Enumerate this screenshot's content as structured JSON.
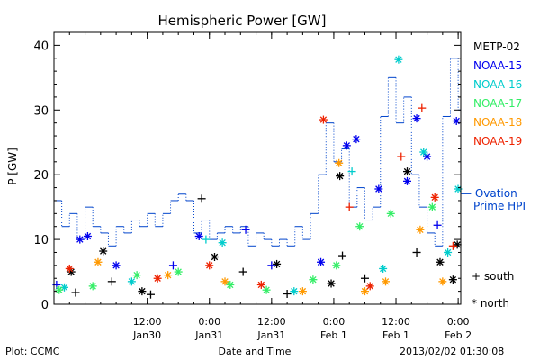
{
  "chart_data": {
    "type": "scatter",
    "title": "Hemispheric Power [GW]",
    "ylabel": "P [GW]",
    "xlabel": "Date and Time",
    "ylim": [
      0,
      42
    ],
    "yticks": [
      0,
      10,
      20,
      30,
      40
    ],
    "xlim": [
      "2013-01-29T18:00",
      "2013-02-02T00:30"
    ],
    "xticks": [
      {
        "t": "2013-01-30T12:00",
        "line1": "12:00",
        "line2": "Jan30"
      },
      {
        "t": "2013-01-31T00:00",
        "line1": "0:00",
        "line2": "Jan31"
      },
      {
        "t": "2013-01-31T12:00",
        "line1": "12:00",
        "line2": "Jan31"
      },
      {
        "t": "2013-02-01T00:00",
        "line1": "0:00",
        "line2": "Feb 1"
      },
      {
        "t": "2013-02-01T12:00",
        "line1": "12:00",
        "line2": "Feb 1"
      },
      {
        "t": "2013-02-02T00:00",
        "line1": "0:00",
        "line2": "Feb 2"
      }
    ],
    "series": [
      {
        "name": "METP-02",
        "color": "#000000",
        "points": [
          {
            "t": "2013-01-29T21:20",
            "v": 5.0,
            "m": "*"
          },
          {
            "t": "2013-01-29T22:10",
            "v": 1.8,
            "m": "+"
          },
          {
            "t": "2013-01-30T03:30",
            "v": 8.2,
            "m": "*"
          },
          {
            "t": "2013-01-30T05:10",
            "v": 3.5,
            "m": "+"
          },
          {
            "t": "2013-01-30T11:00",
            "v": 2.0,
            "m": "*"
          },
          {
            "t": "2013-01-30T12:40",
            "v": 1.5,
            "m": "+"
          },
          {
            "t": "2013-01-30T22:30",
            "v": 16.3,
            "m": "+"
          },
          {
            "t": "2013-01-31T01:00",
            "v": 7.3,
            "m": "*"
          },
          {
            "t": "2013-01-31T06:30",
            "v": 5.0,
            "m": "+"
          },
          {
            "t": "2013-01-31T13:00",
            "v": 6.2,
            "m": "*"
          },
          {
            "t": "2013-01-31T15:00",
            "v": 1.6,
            "m": "+"
          },
          {
            "t": "2013-01-31T23:30",
            "v": 3.2,
            "m": "*"
          },
          {
            "t": "2013-02-01T01:10",
            "v": 19.8,
            "m": "*"
          },
          {
            "t": "2013-02-01T01:40",
            "v": 7.5,
            "m": "+"
          },
          {
            "t": "2013-02-01T06:00",
            "v": 4.0,
            "m": "+"
          },
          {
            "t": "2013-02-01T14:10",
            "v": 20.5,
            "m": "*"
          },
          {
            "t": "2013-02-01T16:00",
            "v": 8.0,
            "m": "+"
          },
          {
            "t": "2013-02-01T20:30",
            "v": 6.5,
            "m": "*"
          },
          {
            "t": "2013-02-01T23:00",
            "v": 3.8,
            "m": "*"
          },
          {
            "t": "2013-02-01T23:50",
            "v": 9.2,
            "m": "*"
          }
        ]
      },
      {
        "name": "NOAA-15",
        "color": "#0000ee",
        "points": [
          {
            "t": "2013-01-29T18:30",
            "v": 3.0,
            "m": "+"
          },
          {
            "t": "2013-01-29T23:00",
            "v": 10.0,
            "m": "*"
          },
          {
            "t": "2013-01-30T00:30",
            "v": 10.5,
            "m": "*"
          },
          {
            "t": "2013-01-30T06:00",
            "v": 6.0,
            "m": "*"
          },
          {
            "t": "2013-01-30T17:00",
            "v": 6.0,
            "m": "+"
          },
          {
            "t": "2013-01-30T22:00",
            "v": 10.5,
            "m": "*"
          },
          {
            "t": "2013-01-31T07:00",
            "v": 11.5,
            "m": "+"
          },
          {
            "t": "2013-01-31T12:00",
            "v": 6.0,
            "m": "+"
          },
          {
            "t": "2013-01-31T21:30",
            "v": 6.5,
            "m": "*"
          },
          {
            "t": "2013-02-01T02:30",
            "v": 24.5,
            "m": "*"
          },
          {
            "t": "2013-02-01T04:20",
            "v": 25.5,
            "m": "*"
          },
          {
            "t": "2013-02-01T08:40",
            "v": 17.8,
            "m": "*"
          },
          {
            "t": "2013-02-01T14:10",
            "v": 19.0,
            "m": "*"
          },
          {
            "t": "2013-02-01T16:00",
            "v": 28.7,
            "m": "*"
          },
          {
            "t": "2013-02-01T18:00",
            "v": 22.8,
            "m": "*"
          },
          {
            "t": "2013-02-01T20:00",
            "v": 12.2,
            "m": "+"
          },
          {
            "t": "2013-02-01T23:40",
            "v": 28.3,
            "m": "*"
          }
        ]
      },
      {
        "name": "NOAA-16",
        "color": "#00cccc",
        "points": [
          {
            "t": "2013-01-29T20:00",
            "v": 2.6,
            "m": "*"
          },
          {
            "t": "2013-01-30T09:00",
            "v": 3.5,
            "m": "*"
          },
          {
            "t": "2013-01-30T23:20",
            "v": 10.0,
            "m": "+"
          },
          {
            "t": "2013-01-31T02:30",
            "v": 9.5,
            "m": "*"
          },
          {
            "t": "2013-01-31T16:20",
            "v": 2.0,
            "m": "*"
          },
          {
            "t": "2013-02-01T03:30",
            "v": 20.5,
            "m": "+"
          },
          {
            "t": "2013-02-01T09:30",
            "v": 5.5,
            "m": "*"
          },
          {
            "t": "2013-02-01T12:30",
            "v": 37.8,
            "m": "*"
          },
          {
            "t": "2013-02-01T17:20",
            "v": 23.5,
            "m": "*"
          },
          {
            "t": "2013-02-01T22:00",
            "v": 8.0,
            "m": "*"
          },
          {
            "t": "2013-02-01T23:59",
            "v": 17.8,
            "m": "*"
          }
        ]
      },
      {
        "name": "NOAA-17",
        "color": "#33ee66",
        "points": [
          {
            "t": "2013-01-29T19:00",
            "v": 2.2,
            "m": "*"
          },
          {
            "t": "2013-01-30T01:30",
            "v": 2.8,
            "m": "*"
          },
          {
            "t": "2013-01-30T10:00",
            "v": 4.5,
            "m": "*"
          },
          {
            "t": "2013-01-30T18:00",
            "v": 5.0,
            "m": "*"
          },
          {
            "t": "2013-01-31T04:00",
            "v": 3.0,
            "m": "*"
          },
          {
            "t": "2013-01-31T11:00",
            "v": 2.2,
            "m": "*"
          },
          {
            "t": "2013-01-31T20:00",
            "v": 3.8,
            "m": "*"
          },
          {
            "t": "2013-02-01T00:30",
            "v": 6.0,
            "m": "*"
          },
          {
            "t": "2013-02-01T05:00",
            "v": 12.0,
            "m": "*"
          },
          {
            "t": "2013-02-01T11:00",
            "v": 14.0,
            "m": "*"
          },
          {
            "t": "2013-02-01T19:00",
            "v": 15.0,
            "m": "*"
          }
        ]
      },
      {
        "name": "NOAA-18",
        "color": "#ff9900",
        "points": [
          {
            "t": "2013-01-30T02:30",
            "v": 6.5,
            "m": "*"
          },
          {
            "t": "2013-01-30T16:00",
            "v": 4.5,
            "m": "*"
          },
          {
            "t": "2013-01-31T03:00",
            "v": 3.5,
            "m": "*"
          },
          {
            "t": "2013-01-31T18:00",
            "v": 2.0,
            "m": "*"
          },
          {
            "t": "2013-02-01T01:00",
            "v": 21.8,
            "m": "*"
          },
          {
            "t": "2013-02-01T06:00",
            "v": 2.0,
            "m": "*"
          },
          {
            "t": "2013-02-01T10:00",
            "v": 3.5,
            "m": "*"
          },
          {
            "t": "2013-02-01T16:40",
            "v": 11.5,
            "m": "*"
          },
          {
            "t": "2013-02-01T21:00",
            "v": 3.5,
            "m": "*"
          }
        ]
      },
      {
        "name": "NOAA-19",
        "color": "#ee2200",
        "points": [
          {
            "t": "2013-01-29T21:00",
            "v": 5.5,
            "m": "*"
          },
          {
            "t": "2013-01-30T14:00",
            "v": 4.0,
            "m": "*"
          },
          {
            "t": "2013-01-31T00:00",
            "v": 6.0,
            "m": "*"
          },
          {
            "t": "2013-01-31T10:00",
            "v": 3.0,
            "m": "*"
          },
          {
            "t": "2013-01-31T22:00",
            "v": 28.5,
            "m": "*"
          },
          {
            "t": "2013-02-01T03:00",
            "v": 15.0,
            "m": "+"
          },
          {
            "t": "2013-02-01T07:00",
            "v": 2.8,
            "m": "*"
          },
          {
            "t": "2013-02-01T13:00",
            "v": 22.8,
            "m": "+"
          },
          {
            "t": "2013-02-01T17:00",
            "v": 30.3,
            "m": "+"
          },
          {
            "t": "2013-02-01T19:30",
            "v": 16.5,
            "m": "*"
          },
          {
            "t": "2013-02-01T23:00",
            "v": 9.0,
            "m": "+"
          }
        ]
      }
    ],
    "ovation": {
      "name": "Ovation\nPrime HPI",
      "legend_text": "— Ovation",
      "legend_text2": "Prime HPI",
      "color": "#0044cc",
      "steps": [
        {
          "t": "2013-01-29T18:00",
          "v": 16
        },
        {
          "t": "2013-01-29T19:30",
          "v": 12
        },
        {
          "t": "2013-01-29T21:00",
          "v": 14
        },
        {
          "t": "2013-01-29T22:30",
          "v": 10
        },
        {
          "t": "2013-01-30T00:00",
          "v": 15
        },
        {
          "t": "2013-01-30T01:30",
          "v": 12
        },
        {
          "t": "2013-01-30T03:00",
          "v": 11
        },
        {
          "t": "2013-01-30T04:30",
          "v": 9
        },
        {
          "t": "2013-01-30T06:00",
          "v": 12
        },
        {
          "t": "2013-01-30T07:30",
          "v": 11
        },
        {
          "t": "2013-01-30T09:00",
          "v": 13
        },
        {
          "t": "2013-01-30T10:30",
          "v": 12
        },
        {
          "t": "2013-01-30T12:00",
          "v": 14
        },
        {
          "t": "2013-01-30T13:30",
          "v": 12
        },
        {
          "t": "2013-01-30T15:00",
          "v": 14
        },
        {
          "t": "2013-01-30T16:30",
          "v": 16
        },
        {
          "t": "2013-01-30T18:00",
          "v": 17
        },
        {
          "t": "2013-01-30T19:30",
          "v": 16
        },
        {
          "t": "2013-01-30T21:00",
          "v": 11
        },
        {
          "t": "2013-01-30T22:30",
          "v": 13
        },
        {
          "t": "2013-01-31T00:00",
          "v": 10
        },
        {
          "t": "2013-01-31T01:30",
          "v": 11
        },
        {
          "t": "2013-01-31T03:00",
          "v": 12
        },
        {
          "t": "2013-01-31T04:30",
          "v": 11
        },
        {
          "t": "2013-01-31T06:00",
          "v": 12
        },
        {
          "t": "2013-01-31T07:30",
          "v": 9
        },
        {
          "t": "2013-01-31T09:00",
          "v": 11
        },
        {
          "t": "2013-01-31T10:30",
          "v": 10
        },
        {
          "t": "2013-01-31T12:00",
          "v": 9
        },
        {
          "t": "2013-01-31T13:30",
          "v": 10
        },
        {
          "t": "2013-01-31T15:00",
          "v": 9
        },
        {
          "t": "2013-01-31T16:30",
          "v": 12
        },
        {
          "t": "2013-01-31T18:00",
          "v": 10
        },
        {
          "t": "2013-01-31T19:30",
          "v": 14
        },
        {
          "t": "2013-01-31T21:00",
          "v": 20
        },
        {
          "t": "2013-01-31T22:30",
          "v": 28
        },
        {
          "t": "2013-02-01T00:00",
          "v": 22
        },
        {
          "t": "2013-02-01T01:30",
          "v": 24
        },
        {
          "t": "2013-02-01T03:00",
          "v": 15
        },
        {
          "t": "2013-02-01T04:30",
          "v": 18
        },
        {
          "t": "2013-02-01T06:00",
          "v": 13
        },
        {
          "t": "2013-02-01T07:30",
          "v": 15
        },
        {
          "t": "2013-02-01T09:00",
          "v": 29
        },
        {
          "t": "2013-02-01T10:30",
          "v": 35
        },
        {
          "t": "2013-02-01T12:00",
          "v": 28
        },
        {
          "t": "2013-02-01T13:30",
          "v": 32
        },
        {
          "t": "2013-02-01T15:00",
          "v": 20
        },
        {
          "t": "2013-02-01T16:30",
          "v": 15
        },
        {
          "t": "2013-02-01T18:00",
          "v": 11
        },
        {
          "t": "2013-02-01T19:30",
          "v": 9
        },
        {
          "t": "2013-02-01T21:00",
          "v": 29
        },
        {
          "t": "2013-02-01T22:30",
          "v": 38
        },
        {
          "t": "2013-02-02T00:00",
          "v": 30
        }
      ]
    },
    "marker_legend": [
      {
        "symbol": "+",
        "label": "south"
      },
      {
        "symbol": "*",
        "label": "north"
      }
    ],
    "grid": false,
    "legend_position": "right"
  },
  "footer": {
    "plot_credit": "Plot: CCMC",
    "timestamp": "2013/02/02 01:30:08"
  }
}
